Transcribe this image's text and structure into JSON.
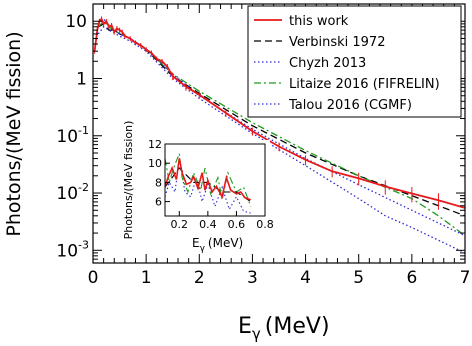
{
  "chart_data": {
    "type": "line",
    "xlabel": "E",
    "xlabel_sub": "γ",
    "xlabel_unit": "(MeV)",
    "ylabel": "Photons/(MeV fission)",
    "x_scale": "linear",
    "y_scale": "log",
    "xlim": [
      0,
      7
    ],
    "ylim": [
      0.0006,
      20
    ],
    "x_ticks": [
      "0",
      "1",
      "2",
      "3",
      "4",
      "5",
      "6",
      "7"
    ],
    "y_ticks": [
      {
        "value": 10,
        "label": "10"
      },
      {
        "value": 1,
        "label": "1"
      },
      {
        "value": 0.1,
        "label": "10",
        "exp": "-1"
      },
      {
        "value": 0.01,
        "label": "10",
        "exp": "-2"
      },
      {
        "value": 0.001,
        "label": "10",
        "exp": "-3"
      }
    ],
    "legend_position": "top-right",
    "series": [
      {
        "name": "this work",
        "color": "#e8191b",
        "style": "solid-with-errorbars",
        "x": [
          0.03,
          0.08,
          0.12,
          0.16,
          0.2,
          0.25,
          0.3,
          0.35,
          0.4,
          0.45,
          0.5,
          0.55,
          0.6,
          0.7,
          0.8,
          0.9,
          1.0,
          1.1,
          1.2,
          1.3,
          1.4,
          1.5,
          1.75,
          2.0,
          2.5,
          3.0,
          3.5,
          4.0,
          4.5,
          5.0,
          5.5,
          6.0,
          6.5,
          7.0
        ],
        "y": [
          3,
          7,
          10,
          11,
          9,
          10,
          8,
          8.5,
          6.5,
          7.5,
          7,
          6.5,
          5.5,
          5,
          4.2,
          3.8,
          3.2,
          2.8,
          2.2,
          2.0,
          1.6,
          1.1,
          0.72,
          0.52,
          0.25,
          0.12,
          0.065,
          0.038,
          0.024,
          0.018,
          0.013,
          0.0098,
          0.0075,
          0.0055
        ],
        "err_frac": [
          0.1,
          0.1,
          0.1,
          0.1,
          0.1,
          0.1,
          0.1,
          0.1,
          0.1,
          0.1,
          0.1,
          0.1,
          0.1,
          0.1,
          0.1,
          0.1,
          0.1,
          0.1,
          0.1,
          0.1,
          0.12,
          0.15,
          0.15,
          0.15,
          0.15,
          0.16,
          0.18,
          0.2,
          0.22,
          0.25,
          0.28,
          0.3,
          0.32,
          0.35
        ]
      },
      {
        "name": "Verbinski 1972",
        "color": "#000000",
        "style": "dashed",
        "x": [
          0.1,
          0.2,
          0.3,
          0.4,
          0.5,
          0.7,
          1.0,
          1.5,
          2.0,
          3.0,
          4.0,
          5.0,
          6.0,
          7.0
        ],
        "y": [
          8,
          9,
          7,
          7,
          6,
          5,
          3.2,
          1.1,
          0.55,
          0.15,
          0.05,
          0.02,
          0.009,
          0.004
        ]
      },
      {
        "name": "Chyzh 2013",
        "color": "#2b2bd4",
        "style": "dotted",
        "x": [
          0.1,
          0.2,
          0.3,
          0.5,
          0.7,
          1.0,
          1.5,
          2.0,
          3.0,
          4.0,
          5.0,
          5.5,
          6.0,
          6.5,
          7.0
        ],
        "y": [
          6,
          8,
          7,
          5.5,
          4.5,
          3.0,
          1.0,
          0.45,
          0.11,
          0.03,
          0.008,
          0.004,
          0.0025,
          0.0015,
          0.0009
        ]
      },
      {
        "name": "Litaize 2016 (FIFRELIN)",
        "color": "#1e9a1e",
        "style": "dash-dot",
        "x": [
          0.1,
          0.2,
          0.3,
          0.5,
          0.7,
          1.0,
          1.5,
          2.0,
          3.0,
          4.0,
          5.0,
          6.0,
          6.5,
          7.0
        ],
        "y": [
          8,
          10,
          8,
          6,
          5,
          3.3,
          1.2,
          0.6,
          0.17,
          0.055,
          0.02,
          0.008,
          0.004,
          0.0018
        ]
      },
      {
        "name": "Talou 2016 (CGMF)",
        "color": "#2b2bd4",
        "style": "dotted",
        "x": [
          0.1,
          0.2,
          0.3,
          0.5,
          0.7,
          1.0,
          1.5,
          2.0,
          3.0,
          4.0,
          5.0,
          6.0,
          6.5,
          7.0
        ],
        "y": [
          9,
          11,
          8,
          6,
          5,
          3.3,
          1.2,
          0.5,
          0.13,
          0.04,
          0.014,
          0.005,
          0.003,
          0.0018
        ]
      }
    ],
    "inset": {
      "ylabel": "Photons/(MeV fission)",
      "xlabel": "E",
      "xlabel_sub": "γ",
      "xlabel_unit": "(MeV)",
      "xlim": [
        0.1,
        0.8
      ],
      "ylim": [
        4.5,
        12
      ],
      "x_ticks": [
        "0.2",
        "0.4",
        "0.6",
        "0.8"
      ],
      "y_ticks": [
        "6",
        "8",
        "10",
        "12"
      ],
      "series": [
        {
          "name": "this work",
          "x": [
            0.1,
            0.12,
            0.15,
            0.18,
            0.2,
            0.22,
            0.25,
            0.28,
            0.3,
            0.33,
            0.36,
            0.38,
            0.4,
            0.43,
            0.46,
            0.5,
            0.53,
            0.56,
            0.6,
            0.63,
            0.66,
            0.7
          ],
          "y": [
            7.5,
            8.5,
            9.5,
            8.3,
            10.5,
            9.0,
            7.8,
            8.0,
            8.6,
            7.4,
            9.0,
            7.2,
            8.2,
            7.0,
            7.6,
            6.5,
            8.5,
            7.2,
            6.8,
            7.0,
            6.4,
            6.2
          ]
        },
        {
          "name": "Verbinski 1972",
          "x": [
            0.1,
            0.2,
            0.3,
            0.4,
            0.5,
            0.6,
            0.7
          ],
          "y": [
            7.5,
            9.5,
            8.0,
            8.0,
            7.0,
            7.0,
            6.0
          ]
        },
        {
          "name": "Litaize 2016 (FIFRELIN)",
          "x": [
            0.1,
            0.13,
            0.16,
            0.2,
            0.22,
            0.26,
            0.3,
            0.35,
            0.38,
            0.42,
            0.47,
            0.5,
            0.54,
            0.6,
            0.65,
            0.7
          ],
          "y": [
            10.5,
            8.0,
            9.5,
            11.0,
            8.5,
            7.0,
            9.0,
            7.2,
            9.5,
            6.8,
            8.5,
            6.2,
            9.0,
            7.0,
            7.5,
            5.5
          ]
        },
        {
          "name": "Talou 2016 (CGMF)",
          "x": [
            0.1,
            0.13,
            0.17,
            0.2,
            0.24,
            0.28,
            0.32,
            0.36,
            0.4,
            0.45,
            0.5,
            0.55,
            0.6,
            0.65,
            0.7
          ],
          "y": [
            6.5,
            8.0,
            7.0,
            10.5,
            7.0,
            6.5,
            8.5,
            6.0,
            7.8,
            5.5,
            7.5,
            5.2,
            6.5,
            5.0,
            4.8
          ]
        }
      ]
    }
  }
}
